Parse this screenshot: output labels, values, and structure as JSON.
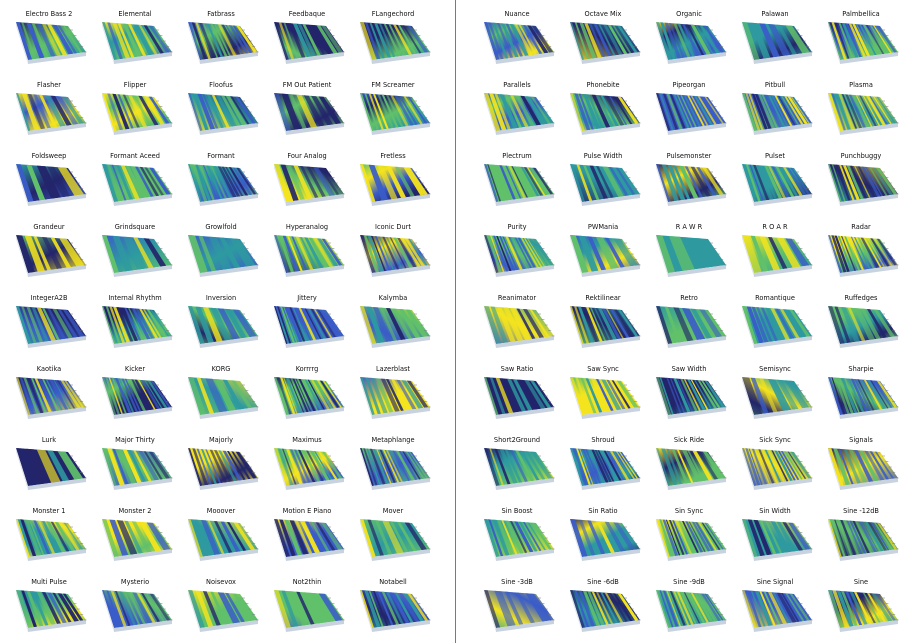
{
  "colors": {
    "dark_navy": "#23256b",
    "blue": "#3a5cc8",
    "teal": "#2e9aa0",
    "green": "#61c06a",
    "yellow": "#f4e41e",
    "divider": "#7a7a7a"
  },
  "panels": [
    {
      "id": "left",
      "rows": [
        [
          "Electro Bass 2",
          "Elemental",
          "Fatbrass",
          "Feedbaque",
          "FLangechord"
        ],
        [
          "Flasher",
          "Flipper",
          "Floofus",
          "FM Out Patient",
          "FM Screamer"
        ],
        [
          "Foldsweep",
          "Formant Aceed",
          "Formant",
          "Four Analog",
          "Fretless"
        ],
        [
          "Grandeur",
          "Grindsquare",
          "Growlfold",
          "Hyperanalog",
          "Iconic Durt"
        ],
        [
          "IntegerA2B",
          "Internal Rhythm",
          "Inversion",
          "Jittery",
          "Kalymba"
        ],
        [
          "Kaotika",
          "Kicker",
          "KORG",
          "Korrrrg",
          "Lazerblast"
        ],
        [
          "Lurk",
          "Major Thirty",
          "Majorly",
          "Maximus",
          "Metaphlange"
        ],
        [
          "Monster 1",
          "Monster 2",
          "Mooover",
          "Motion E Piano",
          "Mover"
        ],
        [
          "Multi Pulse",
          "Mysterio",
          "Noisevox",
          "Not2thin",
          "Notabell"
        ]
      ]
    },
    {
      "id": "right",
      "rows": [
        [
          "Nuance",
          "Octave Mix",
          "Organic",
          "Palawan",
          "Palmbellica"
        ],
        [
          "Parallels",
          "Phonebite",
          "Pipeorgan",
          "Pitbull",
          "Plasma"
        ],
        [
          "Plectrum",
          "Pulse Width",
          "Pulsemonster",
          "Pulset",
          "Punchbuggy"
        ],
        [
          "Purity",
          "PWMania",
          "R A W R",
          "R O A R",
          "Radar"
        ],
        [
          "Reanimator",
          "Rektilinear",
          "Retro",
          "Romantique",
          "Ruffedges"
        ],
        [
          "Saw Ratio",
          "Saw Sync",
          "Saw Width",
          "Semisync",
          "Sharpie"
        ],
        [
          "Short2Ground",
          "Shroud",
          "Sick Ride",
          "Sick Sync",
          "Signals"
        ],
        [
          "Sin Boost",
          "Sin Ratio",
          "Sin Sync",
          "Sin Width",
          "Sine -12dB"
        ],
        [
          "Sine -3dB",
          "Sine -6dB",
          "Sine -9dB",
          "Sine Signal",
          "Sine"
        ]
      ]
    }
  ]
}
